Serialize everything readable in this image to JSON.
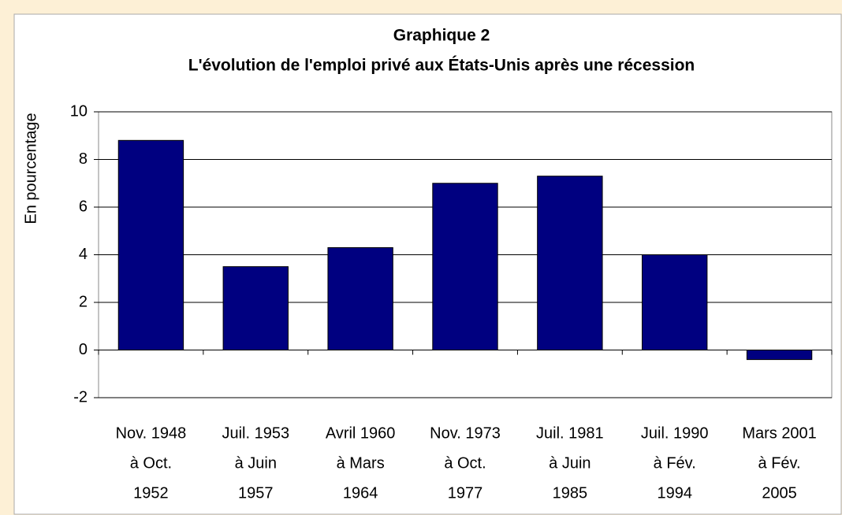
{
  "chart_data": {
    "type": "bar",
    "title": "Graphique 2",
    "subtitle": "L'évolution de l'emploi privé aux États-Unis après une récession",
    "y_label": "En pourcentage",
    "categories": [
      [
        "Nov. 1948",
        "à Oct.",
        "1952"
      ],
      [
        "Juil. 1953",
        "à Juin",
        "1957"
      ],
      [
        "Avril 1960",
        "à Mars",
        "1964"
      ],
      [
        "Nov. 1973",
        "à Oct.",
        "1977"
      ],
      [
        "Juil. 1981",
        "à Juin",
        "1985"
      ],
      [
        "Juil. 1990",
        "à Fév.",
        "1994"
      ],
      [
        "Mars 2001",
        "à Fév.",
        "2005"
      ]
    ],
    "values": [
      8.8,
      3.5,
      4.3,
      7.0,
      7.3,
      4.0,
      -0.4
    ],
    "color": "#000080",
    "ylim": [
      -2,
      10
    ],
    "yticks": [
      -2,
      0,
      2,
      4,
      6,
      8,
      10
    ],
    "grid": true
  }
}
